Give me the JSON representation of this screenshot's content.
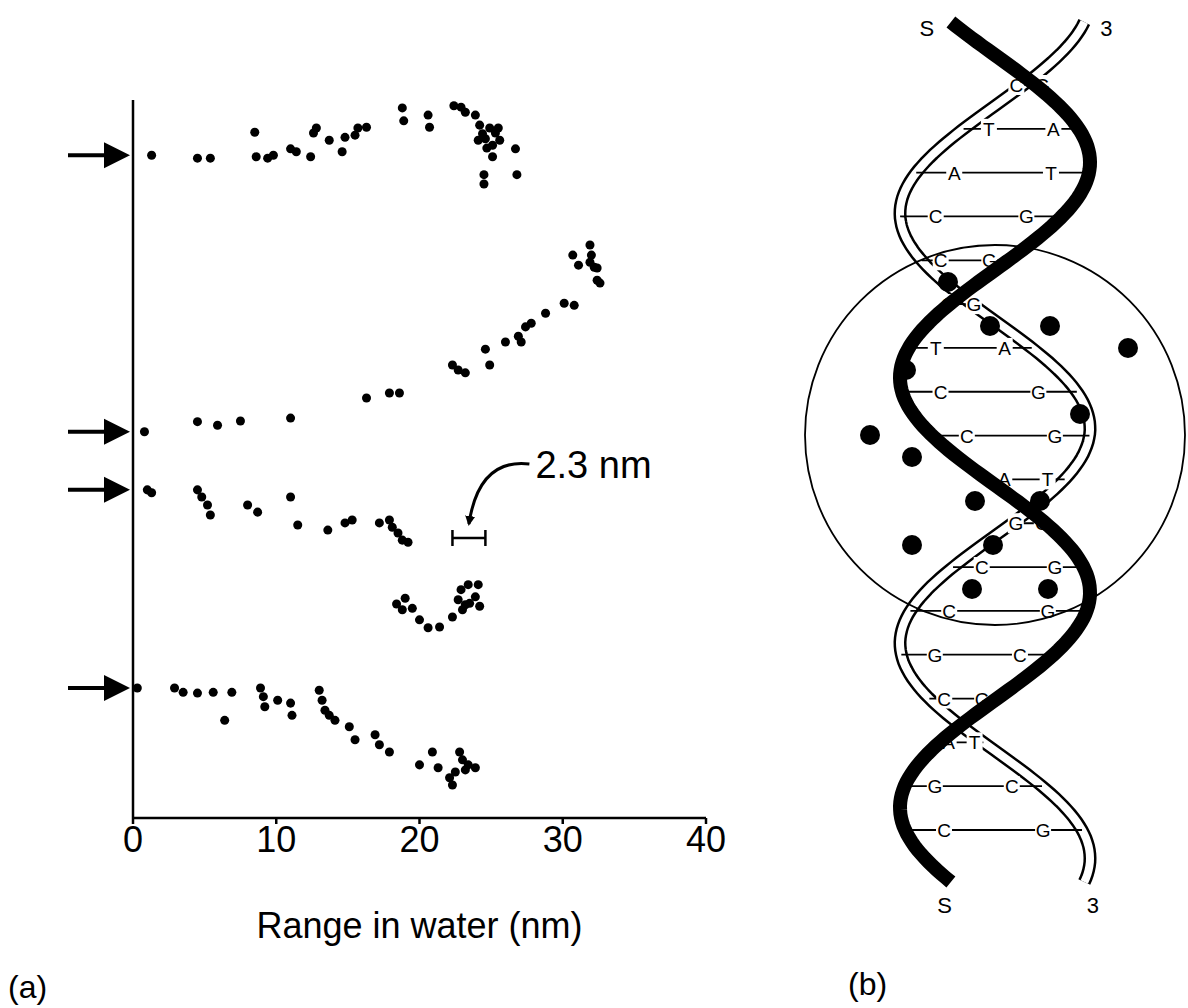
{
  "chart_data": {
    "type": "scatter",
    "panel_label": "(a)",
    "x_label": "Range in water (nm)",
    "xlim": [
      0,
      40
    ],
    "xticks": [
      0,
      10,
      20,
      30,
      40
    ],
    "ylim": [
      0,
      100
    ],
    "tick_labels": "x",
    "grid": false,
    "marker": "circle",
    "series": [
      {
        "color": "#000000",
        "x": [
          1.3,
          4.5,
          5.4,
          8.5,
          8.6,
          9.4,
          9.8,
          11.0,
          11.4,
          12.4,
          12.6,
          12.8,
          13.7,
          14.6,
          14.8,
          15.5,
          15.7,
          16.3,
          18.8,
          18.9,
          20.6,
          20.7,
          22.4,
          22.9,
          23.2,
          23.9,
          24.2,
          24.4,
          24.6,
          24.9,
          24.7,
          25.1,
          25.3,
          25.6,
          25.5,
          24.5,
          24.5,
          26.7,
          26.8,
          25.1,
          24.1
        ],
        "y": [
          92.3,
          91.9,
          91.9,
          95.5,
          92.1,
          91.9,
          92.3,
          93.2,
          92.8,
          92.1,
          95.4,
          96.1,
          94.4,
          92.8,
          94.8,
          95.1,
          96.1,
          96.2,
          98.9,
          97.1,
          97.9,
          96.2,
          99.2,
          99.0,
          98.3,
          97.9,
          96.5,
          95.3,
          94.6,
          96.1,
          93.3,
          93.7,
          95.4,
          94.4,
          96.1,
          89.6,
          88.3,
          93.2,
          89.6,
          92.1,
          94.4
        ]
      },
      {
        "color": "#000000",
        "x": [
          0.8,
          4.5,
          5.9,
          7.5,
          11.0,
          16.3,
          17.9,
          18.6,
          22.3,
          22.7,
          23.2,
          24.9,
          24.6,
          26.0,
          26.9,
          27.1,
          27.4,
          27.8,
          28.8,
          30.1,
          30.8,
          31.9,
          32.2,
          32.4,
          32.0,
          30.7,
          31.1,
          31.9,
          32.6,
          32.4
        ],
        "y": [
          53.8,
          55.2,
          54.7,
          55.3,
          55.7,
          58.5,
          59.2,
          59.2,
          63.1,
          62.4,
          62.0,
          63.1,
          65.3,
          66.3,
          67.1,
          66.3,
          68.4,
          68.9,
          70.3,
          71.7,
          71.4,
          77.4,
          76.7,
          74.9,
          78.4,
          78.4,
          77.0,
          79.8,
          74.5,
          76.6
        ]
      },
      {
        "color": "#000000",
        "x": [
          1.0,
          1.3,
          4.5,
          4.8,
          5.2,
          5.4,
          8.0,
          8.7,
          11.0,
          11.5,
          13.6,
          14.8,
          15.3,
          17.2,
          17.9,
          18.1,
          18.5,
          18.8,
          19.2,
          18.4,
          18.8,
          19.0,
          19.5,
          20.0,
          20.6,
          21.4,
          22.3,
          22.7,
          22.9,
          23.2,
          23.5,
          23.9,
          24.2,
          23.4,
          24.1,
          23.0
        ],
        "y": [
          45.7,
          45.3,
          45.7,
          44.7,
          43.6,
          42.2,
          43.6,
          42.6,
          44.7,
          40.8,
          40.1,
          41.1,
          41.5,
          41.1,
          41.5,
          40.5,
          39.7,
          38.7,
          38.4,
          29.8,
          29.0,
          30.6,
          29.2,
          27.6,
          26.5,
          26.6,
          28.0,
          30.4,
          31.8,
          29.7,
          29.9,
          30.8,
          29.5,
          32.5,
          32.5,
          29.0
        ]
      },
      {
        "color": "#000000",
        "x": [
          0.3,
          2.9,
          3.5,
          4.5,
          5.6,
          6.4,
          6.9,
          8.9,
          9.1,
          9.2,
          10.1,
          11.0,
          11.1,
          13.0,
          13.2,
          13.4,
          13.7,
          14.1,
          15.1,
          15.5,
          16.9,
          17.2,
          17.9,
          20.0,
          20.9,
          21.3,
          22.1,
          22.8,
          23.0,
          23.2,
          23.4,
          23.9,
          22.3,
          22.5
        ],
        "y": [
          18.1,
          18.1,
          17.5,
          17.4,
          17.5,
          13.6,
          17.5,
          18.1,
          16.9,
          15.5,
          16.4,
          16.0,
          14.3,
          17.8,
          16.4,
          15.0,
          14.3,
          13.6,
          12.7,
          10.9,
          11.6,
          10.2,
          9.2,
          7.4,
          9.2,
          7.0,
          5.6,
          9.2,
          8.1,
          6.7,
          7.4,
          7.0,
          4.6,
          6.4
        ]
      }
    ],
    "annotations": [
      {
        "text": "2.3 nm",
        "x": [
          22.3,
          24.6
        ],
        "y": 39.0
      }
    ]
  },
  "diagram": {
    "panel_label": "(b)",
    "strand_labels": {
      "top": [
        "S",
        "3"
      ],
      "bottom": [
        "S",
        "3"
      ]
    },
    "base_pairs": [
      [
        "C",
        "G"
      ],
      [
        "T",
        "A"
      ],
      [
        "A",
        "T"
      ],
      [
        "C",
        "G"
      ],
      [
        "C",
        "G"
      ],
      [
        "C",
        "G"
      ],
      [
        "T",
        "A"
      ],
      [
        "C",
        "G"
      ],
      [
        "C",
        "G"
      ],
      [
        "A",
        "T"
      ],
      [
        "G",
        "C"
      ],
      [
        "C",
        "G"
      ],
      [
        "C",
        "G"
      ],
      [
        "G",
        "C"
      ],
      [
        "C",
        "G"
      ],
      [
        "A",
        "T"
      ],
      [
        "G",
        "C"
      ],
      [
        "C",
        "G"
      ]
    ]
  }
}
